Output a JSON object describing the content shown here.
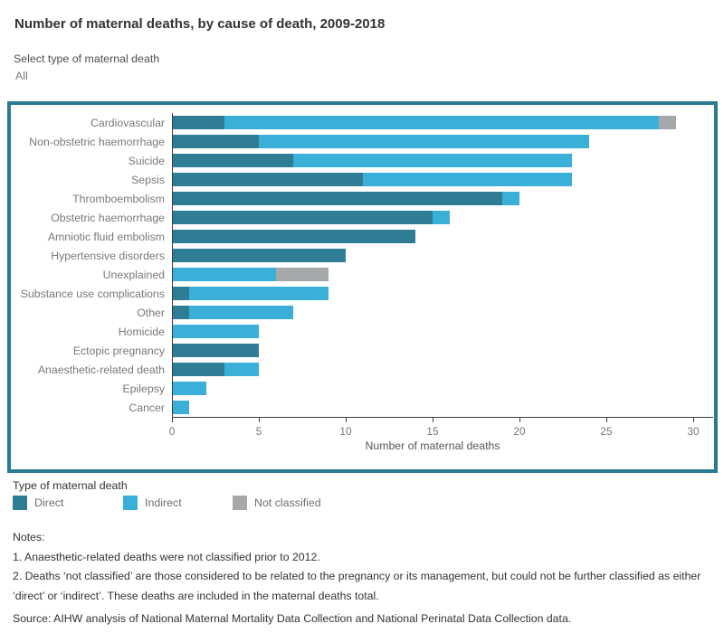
{
  "header": {
    "title": "Number of maternal deaths, by cause of death, 2009-2018"
  },
  "filter": {
    "label": "Select type of maternal death",
    "value": "All"
  },
  "chart_data": {
    "type": "bar",
    "orientation": "horizontal",
    "stacked": true,
    "title": "Number of maternal deaths, by cause of death, 2009-2018",
    "categories": [
      "Cardiovascular",
      "Non-obstetric haemorrhage",
      "Suicide",
      "Sepsis",
      "Thromboembolism",
      "Obstetric haemorrhage",
      "Amniotic fluid embolism",
      "Hypertensive disorders",
      "Unexplained",
      "Substance use complications",
      "Other",
      "Homicide",
      "Ectopic pregnancy",
      "Anaesthetic-related death",
      "Epilepsy",
      "Cancer"
    ],
    "series": [
      {
        "name": "Direct",
        "color": "#2e7d95",
        "values": [
          3,
          5,
          7,
          11,
          19,
          15,
          14,
          10,
          0,
          1,
          1,
          0,
          5,
          3,
          0,
          0
        ]
      },
      {
        "name": "Indirect",
        "color": "#3ab0d8",
        "values": [
          25,
          19,
          16,
          12,
          1,
          1,
          0,
          0,
          6,
          8,
          6,
          5,
          0,
          2,
          2,
          1
        ]
      },
      {
        "name": "Not classified",
        "color": "#a5a8aa",
        "values": [
          1,
          0,
          0,
          0,
          0,
          0,
          0,
          0,
          3,
          0,
          0,
          0,
          0,
          0,
          0,
          0
        ]
      }
    ],
    "xlabel": "Number of maternal deaths",
    "xticks": [
      0,
      5,
      10,
      15,
      20,
      25,
      30
    ],
    "xlim": [
      0,
      31.2
    ],
    "grid": false,
    "legend_position": "bottom"
  },
  "legend": {
    "title": "Type of maternal death"
  },
  "notes": {
    "label": "Notes:",
    "items": [
      "1. Anaesthetic-related deaths were not classified prior to 2012.",
      "2. Deaths ‘not classified’ are those considered to be related to the pregnancy or its management, but could not be further classified as either ‘direct’ or ‘indirect’. These deaths are included in the maternal deaths total."
    ]
  },
  "source": "Source: AIHW analysis of National Maternal Mortality Data Collection and National Perinatal Data Collection data.",
  "colors": {
    "frame_border": "#2a7a91",
    "direct": "#2e7d95",
    "indirect": "#3ab0d8",
    "not_classified": "#a5a8aa",
    "axis_line": "#3c3c3c",
    "label_text": "#787878"
  }
}
